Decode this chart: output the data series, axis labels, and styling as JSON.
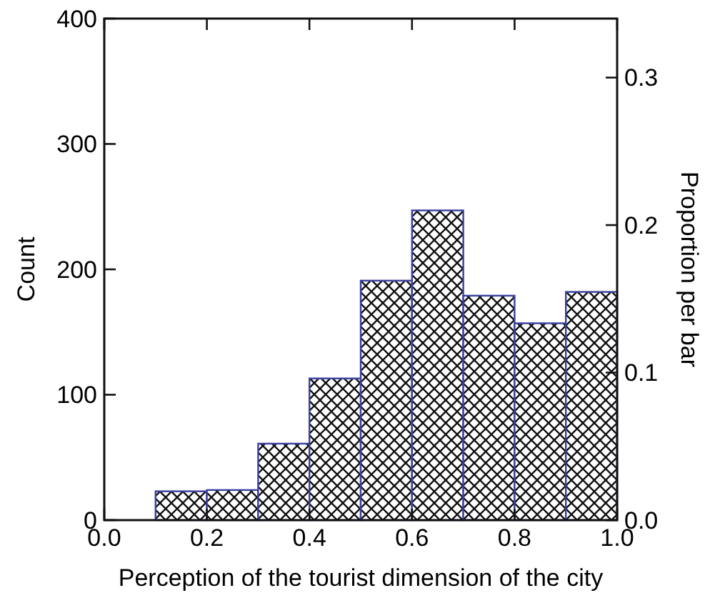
{
  "chart_data": {
    "type": "histogram",
    "xlabel": "Perception of the tourist dimension of the city",
    "ylabel": "Count",
    "y2label": "Proportion per bar",
    "bins": [
      0,
      0.1,
      0.2,
      0.3,
      0.4,
      0.5,
      0.6,
      0.7,
      0.8,
      0.9,
      1.0
    ],
    "values": [
      0,
      23,
      24,
      61,
      113,
      191,
      247,
      179,
      157,
      182
    ],
    "color": "#3a3f9e",
    "xlim": [
      0,
      1
    ],
    "xticks": [
      {
        "value": 0,
        "label": "0.0"
      },
      0.2,
      0.4,
      0.6,
      0.8,
      {
        "value": 1,
        "label": "1.0"
      }
    ],
    "ylim": [
      0,
      400
    ],
    "yticks": [
      0,
      100,
      200,
      300,
      400
    ],
    "y2lim": [
      0,
      0.34
    ],
    "y2ticks": [
      {
        "value": 0,
        "label": "0.0"
      },
      0.1,
      0.2,
      0.3
    ],
    "grid": false
  }
}
